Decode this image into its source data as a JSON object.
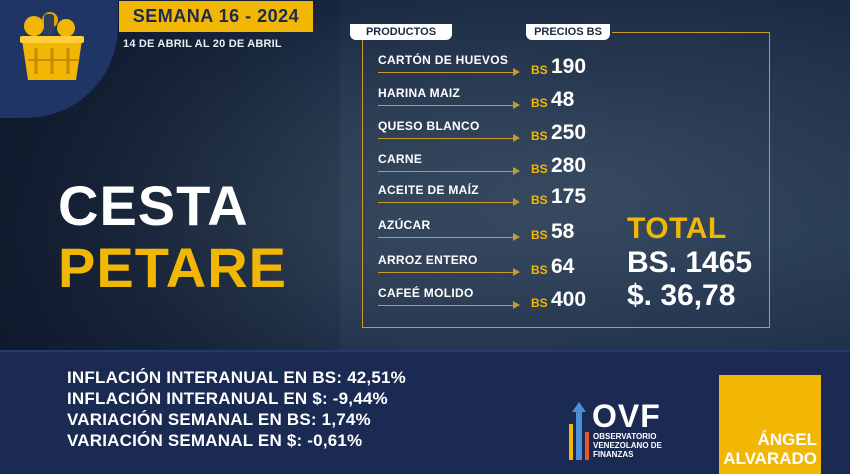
{
  "header": {
    "week": "SEMANA 16 - 2024",
    "dates": "14 DE ABRIL AL  20 DE ABRIL"
  },
  "title": {
    "line1": "CESTA",
    "line2": "PETARE"
  },
  "table": {
    "col_products": "PRODUCTOS",
    "col_prices": "PRECIOS BS",
    "currency": "BS",
    "items": [
      {
        "name": "CARTÓN DE HUEVOS",
        "price": "190"
      },
      {
        "name": "HARINA MAIZ",
        "price": "48"
      },
      {
        "name": "QUESO BLANCO",
        "price": "250"
      },
      {
        "name": "CARNE",
        "price": "280"
      },
      {
        "name": "ACEITE DE MAÍZ",
        "price": "175"
      },
      {
        "name": "AZÚCAR",
        "price": "58"
      },
      {
        "name": "ARROZ ENTERO",
        "price": "64"
      },
      {
        "name": "CAFEÉ MOLIDO",
        "price": "400"
      }
    ]
  },
  "total": {
    "label": "TOTAL",
    "bs": "BS. 1465",
    "usd": "$. 36,78"
  },
  "stats": [
    "INFLACIÓN INTERANUAL EN BS: 42,51%",
    "INFLACIÓN INTERANUAL EN $: -9,44%",
    "VARIACIÓN SEMANAL EN BS: 1,74%",
    "VARIACIÓN SEMANAL EN $: -0,61%"
  ],
  "ovf": {
    "title": "OVF",
    "sub1": "OBSERVATORIO",
    "sub2": "VENEZOLANO DE",
    "sub3": "FINANZAS"
  },
  "author": {
    "first": "ÁNGEL",
    "last": "ALVARADO"
  },
  "colors": {
    "accent": "#f2b705",
    "navy": "#1a2a52",
    "line": "#c79a2a"
  },
  "icons": [
    "basket-icon",
    "ovf-logo-icon",
    "arrow-icon"
  ]
}
